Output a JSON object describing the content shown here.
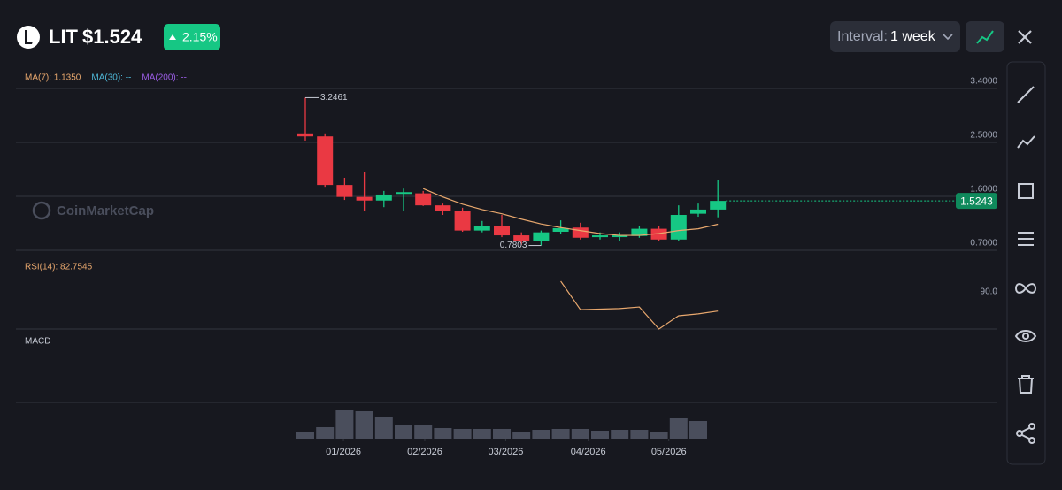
{
  "header": {
    "symbol": "LIT",
    "price": "$1.524",
    "change": "2.15%"
  },
  "interval": {
    "label": "Interval:",
    "value": "1 week"
  },
  "watermark": "CoinMarketCap",
  "chart_data": {
    "type": "candlestick",
    "up_color": "#16c784",
    "down_color": "#ea3943",
    "open": [
      2.65,
      2.6,
      1.79,
      1.59,
      1.53,
      1.65,
      1.65,
      1.45,
      1.36,
      1.03,
      1.1,
      0.95,
      0.85,
      1.01,
      1.08,
      0.92,
      0.94,
      0.94,
      1.06,
      0.88,
      1.31,
      1.38
    ],
    "high": [
      3.2461,
      2.65,
      1.91,
      2.0,
      1.69,
      1.73,
      1.69,
      1.48,
      1.41,
      1.19,
      1.29,
      1.0,
      1.03,
      1.2,
      1.16,
      1.0,
      1.0,
      1.1,
      1.1,
      1.45,
      1.48,
      1.87
    ],
    "low": [
      2.53,
      1.76,
      1.54,
      1.36,
      1.42,
      1.35,
      1.44,
      1.29,
      1.01,
      1.0,
      0.92,
      0.79,
      0.7803,
      0.97,
      0.88,
      0.88,
      0.86,
      0.91,
      0.85,
      0.86,
      1.26,
      1.25
    ],
    "close": [
      2.6,
      1.79,
      1.59,
      1.53,
      1.63,
      1.67,
      1.45,
      1.36,
      1.03,
      1.1,
      0.95,
      0.85,
      1.0,
      1.07,
      0.91,
      0.95,
      0.95,
      1.06,
      0.88,
      1.29,
      1.38,
      1.5243
    ],
    "max_label": "3.2461",
    "min_label": "0.7803",
    "last_label": "1.5243",
    "ylim": [
      0.7,
      3.68
    ],
    "yticks": [
      {
        "value": 0.7,
        "label": "0.7000"
      },
      {
        "value": 1.6,
        "label": "1.6000"
      },
      {
        "value": 2.5,
        "label": "2.5000"
      },
      {
        "value": 3.4,
        "label": "3.4000"
      }
    ],
    "xticks": [
      {
        "value": 1.94,
        "label": "01/2026"
      },
      {
        "value": 6.08,
        "label": "02/2026"
      },
      {
        "value": 10.2,
        "label": "03/2026"
      },
      {
        "value": 14.4,
        "label": "04/2026"
      },
      {
        "value": 18.5,
        "label": "05/2026"
      }
    ],
    "ma": [
      {
        "name": "MA(7): 1.1350",
        "color": "#e9a86e",
        "values": [
          null,
          null,
          null,
          null,
          null,
          null,
          1.73,
          1.59,
          1.47,
          1.38,
          1.31,
          1.22,
          1.14,
          1.08,
          1.03,
          0.98,
          0.95,
          0.95,
          0.98,
          1.03,
          1.06,
          1.135
        ]
      },
      {
        "name": "MA(30): --",
        "color": "#4fb8d8"
      },
      {
        "name": "MA(200): --",
        "color": "#9b5de5"
      }
    ],
    "rsi": {
      "name": "RSI(14): 82.7545",
      "color": "#e9a86e",
      "ylim": [
        76,
        103.3
      ],
      "yticks": [
        {
          "value": 90,
          "label": "90.0"
        }
      ],
      "values": [
        null,
        null,
        null,
        null,
        null,
        null,
        null,
        null,
        null,
        null,
        null,
        null,
        null,
        94,
        83.3,
        83.5,
        83.7,
        84.3,
        76,
        81,
        81.7,
        82.7545
      ]
    },
    "macd": {
      "name": "MACD",
      "color": "#4a4e5c",
      "ylim": [
        0,
        41
      ],
      "volume": [
        8,
        13,
        32,
        31,
        25,
        15,
        15,
        12,
        11,
        11,
        11,
        8,
        10,
        11,
        11,
        9,
        10,
        10,
        8,
        23,
        20,
        null
      ]
    }
  }
}
